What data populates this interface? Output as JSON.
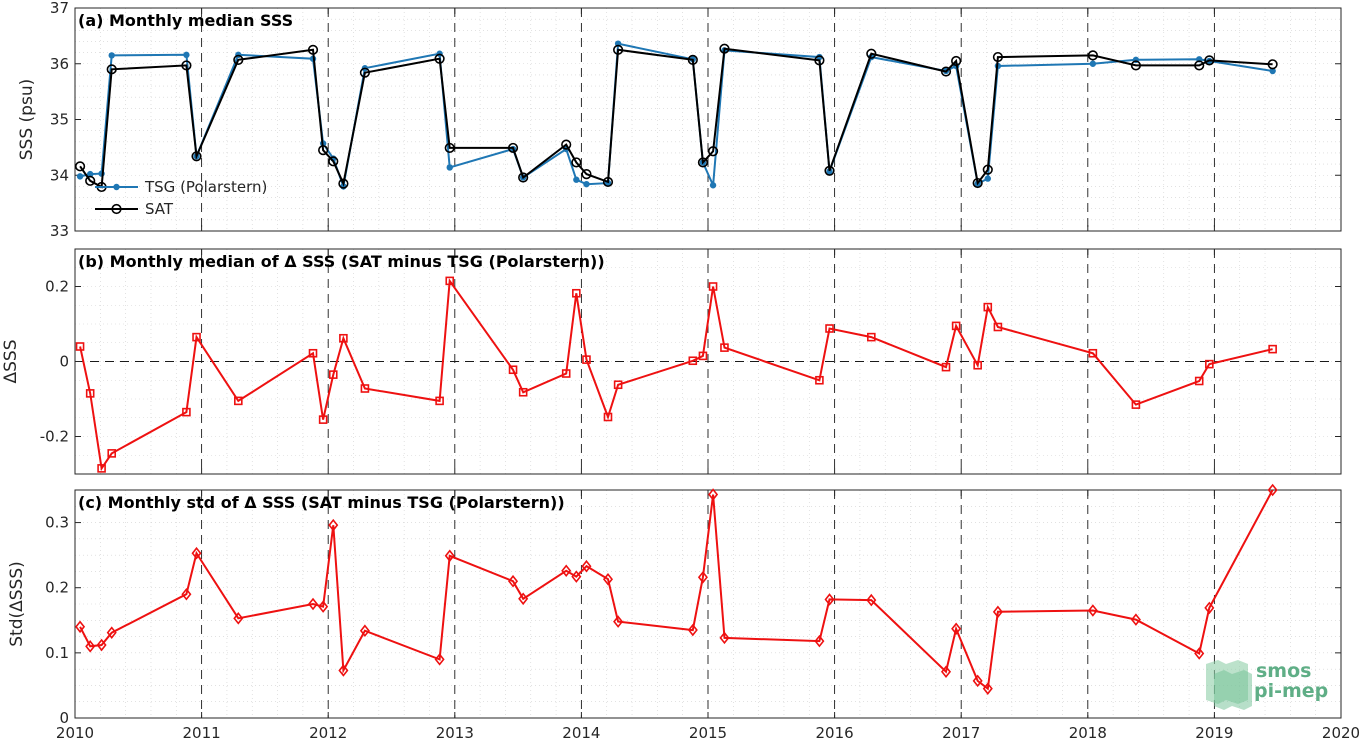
{
  "logo": {
    "line1": "smos",
    "line2": "pi-mep"
  },
  "colors": {
    "tsg": "#1f77b4",
    "sat": "#000000",
    "delta": "#ee1111",
    "logo": "#5fae86"
  },
  "chart_data": [
    {
      "type": "line",
      "title": "(a) Monthly median SSS",
      "ylabel": "SSS (psu)",
      "xlim": [
        2010,
        2020
      ],
      "ylim": [
        33,
        37
      ],
      "xticks": [
        "2010",
        "2011",
        "2012",
        "2013",
        "2014",
        "2015",
        "2016",
        "2017",
        "2018",
        "2019",
        "2020"
      ],
      "yticks": [
        "33",
        "34",
        "35",
        "36",
        "37"
      ],
      "legend_position": "left",
      "grid": true,
      "series": [
        {
          "name": "TSG (Polarstern)",
          "marker": "dot",
          "x": [
            2010.04,
            2010.12,
            2010.21,
            2010.29,
            2010.88,
            2010.96,
            2011.29,
            2011.88,
            2011.96,
            2012.04,
            2012.12,
            2012.29,
            2012.88,
            2012.96,
            2013.46,
            2013.54,
            2013.88,
            2013.96,
            2014.04,
            2014.21,
            2014.29,
            2014.88,
            2014.96,
            2015.04,
            2015.13,
            2015.88,
            2015.96,
            2016.29,
            2016.88,
            2016.96,
            2017.13,
            2017.21,
            2017.29,
            2018.04,
            2018.38,
            2018.88,
            2018.96,
            2019.46
          ],
          "y": [
            33.98,
            34.02,
            34.03,
            36.15,
            36.16,
            34.34,
            36.16,
            36.09,
            34.57,
            34.3,
            33.8,
            35.92,
            36.18,
            34.14,
            34.47,
            33.96,
            34.47,
            33.92,
            33.84,
            33.86,
            36.36,
            36.08,
            34.23,
            33.82,
            36.24,
            36.12,
            34.07,
            36.12,
            35.87,
            35.96,
            33.85,
            33.94,
            35.96,
            36.0,
            36.07,
            36.08,
            36.05,
            35.87
          ]
        },
        {
          "name": "SAT",
          "marker": "circle",
          "x": [
            2010.04,
            2010.12,
            2010.21,
            2010.29,
            2010.88,
            2010.96,
            2011.29,
            2011.88,
            2011.96,
            2012.04,
            2012.12,
            2012.29,
            2012.88,
            2012.96,
            2013.46,
            2013.54,
            2013.88,
            2013.96,
            2014.04,
            2014.21,
            2014.29,
            2014.88,
            2014.96,
            2015.04,
            2015.13,
            2015.88,
            2015.96,
            2016.29,
            2016.88,
            2016.96,
            2017.13,
            2017.21,
            2017.29,
            2018.04,
            2018.38,
            2018.88,
            2018.96,
            2019.46
          ],
          "y": [
            34.16,
            33.9,
            33.79,
            35.9,
            35.97,
            34.34,
            36.07,
            36.25,
            34.45,
            34.25,
            33.85,
            35.84,
            36.09,
            34.49,
            34.49,
            33.96,
            34.55,
            34.23,
            34.02,
            33.88,
            36.25,
            36.07,
            34.23,
            34.43,
            36.27,
            36.06,
            34.08,
            36.18,
            35.86,
            36.05,
            33.86,
            34.1,
            36.12,
            36.15,
            35.97,
            35.97,
            36.06,
            35.99
          ]
        }
      ]
    },
    {
      "type": "line",
      "title": "(b) Monthly median of Δ SSS (SAT minus TSG (Polarstern))",
      "ylabel": "ΔSSS",
      "xlim": [
        2010,
        2020
      ],
      "ylim": [
        -0.3,
        0.3
      ],
      "xticks": [
        "2010",
        "2011",
        "2012",
        "2013",
        "2014",
        "2015",
        "2016",
        "2017",
        "2018",
        "2019",
        "2020"
      ],
      "yticks": [
        "-0.2",
        "0",
        "0.2"
      ],
      "grid": true,
      "series": [
        {
          "marker": "square",
          "x": [
            2010.04,
            2010.12,
            2010.21,
            2010.29,
            2010.88,
            2010.96,
            2011.29,
            2011.88,
            2011.96,
            2012.04,
            2012.12,
            2012.29,
            2012.88,
            2012.96,
            2013.46,
            2013.54,
            2013.88,
            2013.96,
            2014.04,
            2014.21,
            2014.29,
            2014.88,
            2014.96,
            2015.04,
            2015.13,
            2015.88,
            2015.96,
            2016.29,
            2016.88,
            2016.96,
            2017.13,
            2017.21,
            2017.29,
            2018.04,
            2018.38,
            2018.88,
            2018.96,
            2019.46
          ],
          "y": [
            0.04,
            -0.085,
            -0.285,
            -0.245,
            -0.135,
            0.065,
            -0.105,
            0.022,
            -0.155,
            -0.035,
            0.062,
            -0.072,
            -0.105,
            0.215,
            -0.022,
            -0.082,
            -0.032,
            0.182,
            0.005,
            -0.148,
            -0.062,
            0.002,
            0.015,
            0.2,
            0.037,
            -0.05,
            0.088,
            0.065,
            -0.015,
            0.095,
            -0.01,
            0.145,
            0.092,
            0.022,
            -0.115,
            -0.052,
            -0.007,
            0.033
          ]
        }
      ]
    },
    {
      "type": "line",
      "title": "(c) Monthly std of Δ SSS (SAT minus TSG (Polarstern))",
      "ylabel": "Std(ΔSSS)",
      "xlim": [
        2010,
        2020
      ],
      "ylim": [
        0,
        0.35
      ],
      "xticks": [
        "2010",
        "2011",
        "2012",
        "2013",
        "2014",
        "2015",
        "2016",
        "2017",
        "2018",
        "2019",
        "2020"
      ],
      "yticks": [
        "0",
        "0.1",
        "0.2",
        "0.3"
      ],
      "grid": true,
      "series": [
        {
          "marker": "diamond",
          "x": [
            2010.04,
            2010.12,
            2010.21,
            2010.29,
            2010.88,
            2010.96,
            2011.29,
            2011.88,
            2011.96,
            2012.04,
            2012.12,
            2012.29,
            2012.88,
            2012.96,
            2013.46,
            2013.54,
            2013.88,
            2013.96,
            2014.04,
            2014.21,
            2014.29,
            2014.88,
            2014.96,
            2015.04,
            2015.13,
            2015.88,
            2015.96,
            2016.29,
            2016.88,
            2016.96,
            2017.13,
            2017.21,
            2017.29,
            2018.04,
            2018.38,
            2018.88,
            2018.96,
            2019.46
          ],
          "y": [
            0.14,
            0.11,
            0.112,
            0.131,
            0.19,
            0.253,
            0.153,
            0.175,
            0.171,
            0.296,
            0.073,
            0.134,
            0.09,
            0.249,
            0.21,
            0.183,
            0.226,
            0.217,
            0.233,
            0.213,
            0.148,
            0.135,
            0.216,
            0.343,
            0.123,
            0.118,
            0.182,
            0.181,
            0.071,
            0.137,
            0.057,
            0.045,
            0.163,
            0.165,
            0.151,
            0.099,
            0.169,
            0.35
          ]
        }
      ]
    }
  ]
}
